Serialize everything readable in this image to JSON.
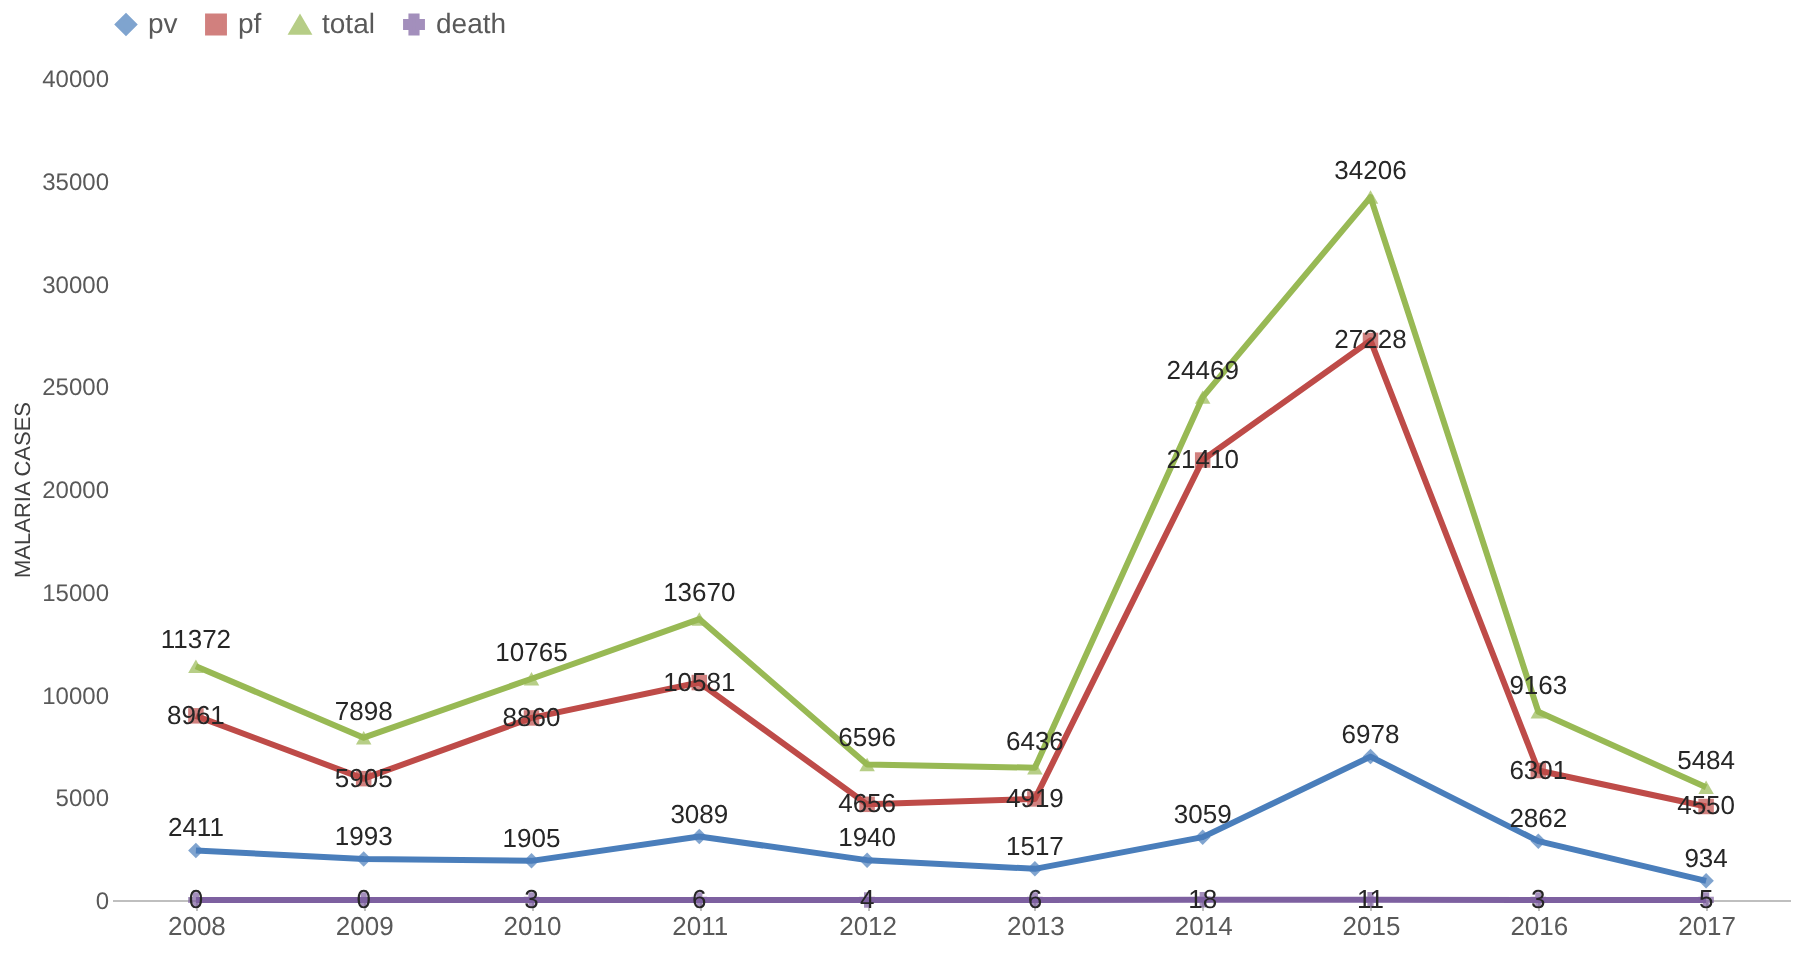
{
  "chart_data": {
    "type": "line",
    "ylabel": "MALARIA CASES",
    "categories": [
      "2008",
      "2009",
      "2010",
      "2011",
      "2012",
      "2013",
      "2014",
      "2015",
      "2016",
      "2017"
    ],
    "series": [
      {
        "name": "pv",
        "color": "#4a7ebb",
        "marker": "diamond",
        "values": [
          2411,
          1993,
          1905,
          3089,
          1940,
          1517,
          3059,
          6978,
          2862,
          934
        ]
      },
      {
        "name": "pf",
        "color": "#be4b48",
        "marker": "square",
        "values": [
          8961,
          5905,
          8860,
          10581,
          4656,
          4919,
          21410,
          27228,
          6301,
          4550
        ]
      },
      {
        "name": "total",
        "color": "#98b954",
        "marker": "triangle",
        "values": [
          11372,
          7898,
          10765,
          13670,
          6596,
          6436,
          24469,
          34206,
          9163,
          5484
        ]
      },
      {
        "name": "death",
        "color": "#7d60a0",
        "marker": "cross",
        "values": [
          0,
          0,
          3,
          6,
          4,
          6,
          18,
          11,
          3,
          5
        ]
      }
    ],
    "ylim": [
      0,
      40000
    ],
    "yticks": [
      0,
      5000,
      10000,
      15000,
      20000,
      25000,
      30000,
      35000,
      40000
    ],
    "grid": false,
    "legend": "top",
    "data_labels": true,
    "line_style": "solid"
  }
}
